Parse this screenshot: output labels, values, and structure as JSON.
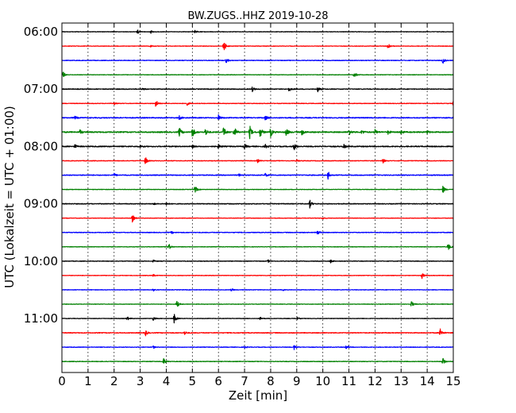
{
  "chart_data": {
    "type": "line",
    "title": "BW.ZUGS..HHZ 2019-10-28",
    "xlabel": "Zeit  [min]",
    "ylabel": "UTC (Lokalzeit = UTC + 01:00)",
    "xlim": [
      0,
      15
    ],
    "x_ticks": [
      "0",
      "1",
      "2",
      "3",
      "4",
      "5",
      "6",
      "7",
      "8",
      "9",
      "10",
      "11",
      "12",
      "13",
      "14",
      "15"
    ],
    "y_tick_labels": [
      "06:00",
      "07:00",
      "08:00",
      "09:00",
      "10:00",
      "11:00"
    ],
    "grid": "vertical dotted",
    "trace_colors": [
      "#000000",
      "#ff0000",
      "#0000ff",
      "#008000"
    ],
    "trace_noise": [
      0.3,
      0.3,
      0.35,
      0.3,
      0.45,
      0.35,
      0.55,
      0.7,
      0.6,
      0.35,
      0.5,
      0.3,
      0.45,
      0.3,
      0.4,
      0.3,
      0.35,
      0.3,
      0.3,
      0.3,
      0.3,
      0.45,
      0.35,
      0.35
    ],
    "traces": [
      {
        "start": "06:00",
        "events": [
          [
            2.9,
            2.5
          ],
          [
            3.4,
            2
          ],
          [
            5.1,
            1.5
          ]
        ]
      },
      {
        "start": "06:15",
        "events": [
          [
            3.4,
            1.5
          ],
          [
            6.2,
            8
          ],
          [
            12.5,
            5
          ]
        ]
      },
      {
        "start": "06:30",
        "events": [
          [
            6.3,
            3
          ],
          [
            14.6,
            4
          ]
        ]
      },
      {
        "start": "06:45",
        "events": [
          [
            0.05,
            4
          ],
          [
            11.2,
            5
          ]
        ]
      },
      {
        "start": "07:00",
        "events": [
          [
            3.1,
            1.5
          ],
          [
            7.3,
            3
          ],
          [
            8.7,
            3
          ],
          [
            9.8,
            3.5
          ]
        ]
      },
      {
        "start": "07:15",
        "events": [
          [
            2.0,
            1.5
          ],
          [
            3.6,
            5
          ],
          [
            4.8,
            2
          ],
          [
            15.0,
            3
          ]
        ]
      },
      {
        "start": "07:30",
        "events": [
          [
            0.5,
            2
          ],
          [
            4.5,
            2.5
          ],
          [
            6.0,
            3.5
          ],
          [
            7.8,
            3
          ],
          [
            15.0,
            2
          ]
        ]
      },
      {
        "start": "07:45",
        "events": [
          [
            0.7,
            3
          ],
          [
            4.5,
            6
          ],
          [
            5.0,
            7
          ],
          [
            5.5,
            5
          ],
          [
            6.2,
            7
          ],
          [
            6.6,
            8
          ],
          [
            7.2,
            8
          ],
          [
            7.6,
            7
          ],
          [
            8.0,
            6
          ],
          [
            8.6,
            5
          ],
          [
            9.2,
            4
          ],
          [
            11.0,
            4
          ],
          [
            11.5,
            3
          ],
          [
            12.0,
            3
          ],
          [
            12.5,
            2.5
          ],
          [
            13.0,
            2.5
          ],
          [
            14.0,
            2
          ]
        ]
      },
      {
        "start": "08:00",
        "events": [
          [
            0.5,
            2.5
          ],
          [
            3.0,
            1.5
          ],
          [
            5.0,
            1.5
          ],
          [
            6.0,
            2.5
          ],
          [
            7.0,
            3
          ],
          [
            7.8,
            2.5
          ],
          [
            8.9,
            4.5
          ],
          [
            10.8,
            2.5
          ]
        ]
      },
      {
        "start": "08:15",
        "events": [
          [
            3.2,
            5
          ],
          [
            7.5,
            2
          ],
          [
            9.0,
            1.5
          ],
          [
            12.3,
            3
          ]
        ]
      },
      {
        "start": "08:30",
        "events": [
          [
            2.0,
            2
          ],
          [
            6.8,
            2
          ],
          [
            7.8,
            2.5
          ],
          [
            10.2,
            5
          ]
        ]
      },
      {
        "start": "08:45",
        "events": [
          [
            5.1,
            5
          ],
          [
            14.6,
            5
          ]
        ]
      },
      {
        "start": "09:00",
        "events": [
          [
            3.5,
            1.5
          ],
          [
            4.0,
            2
          ],
          [
            9.5,
            5
          ]
        ]
      },
      {
        "start": "09:15",
        "events": [
          [
            2.7,
            5
          ],
          [
            10.0,
            1.5
          ]
        ]
      },
      {
        "start": "09:30",
        "events": [
          [
            4.2,
            1.5
          ],
          [
            9.8,
            3.5
          ]
        ]
      },
      {
        "start": "09:45",
        "events": [
          [
            4.1,
            4
          ],
          [
            14.8,
            5
          ]
        ]
      },
      {
        "start": "10:00",
        "events": [
          [
            3.5,
            1.5
          ],
          [
            7.9,
            1.5
          ],
          [
            10.3,
            2
          ]
        ]
      },
      {
        "start": "10:15",
        "events": [
          [
            3.5,
            1.5
          ],
          [
            13.8,
            3.5
          ]
        ]
      },
      {
        "start": "10:30",
        "events": [
          [
            3.5,
            1.5
          ],
          [
            6.5,
            2
          ],
          [
            8.5,
            1.5
          ]
        ]
      },
      {
        "start": "10:45",
        "events": [
          [
            4.4,
            5
          ],
          [
            13.4,
            4
          ]
        ]
      },
      {
        "start": "11:00",
        "events": [
          [
            2.5,
            2.5
          ],
          [
            3.5,
            2.5
          ],
          [
            4.3,
            6
          ],
          [
            7.6,
            2
          ],
          [
            9.0,
            2
          ]
        ]
      },
      {
        "start": "11:15",
        "events": [
          [
            3.2,
            4
          ],
          [
            4.7,
            2.5
          ],
          [
            14.5,
            6
          ]
        ]
      },
      {
        "start": "11:30",
        "events": [
          [
            3.5,
            1.5
          ],
          [
            7.0,
            1.5
          ],
          [
            8.9,
            3
          ],
          [
            10.9,
            2.5
          ]
        ]
      },
      {
        "start": "11:45",
        "events": [
          [
            3.9,
            4
          ],
          [
            14.6,
            5
          ]
        ]
      }
    ]
  }
}
